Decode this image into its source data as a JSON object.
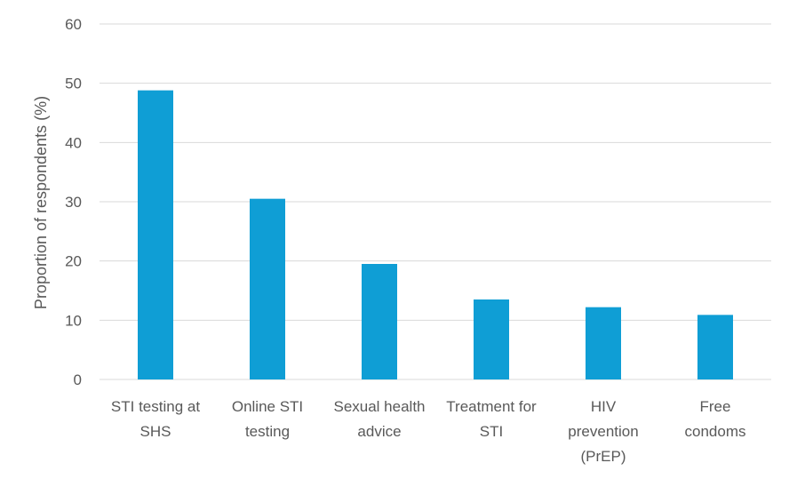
{
  "chart_data": {
    "type": "bar",
    "categories": [
      [
        "STI testing at",
        "SHS"
      ],
      [
        "Online STI",
        "testing"
      ],
      [
        "Sexual health",
        "advice"
      ],
      [
        "Treatment for",
        "STI"
      ],
      [
        "HIV",
        "prevention",
        "(PrEP)"
      ],
      [
        "Free",
        "condoms"
      ]
    ],
    "values": [
      48.8,
      30.5,
      19.5,
      13.5,
      12.2,
      10.9
    ],
    "ylabel": "Proportion of respondents (%)",
    "ylim": [
      0,
      60
    ],
    "yticks": [
      "0",
      "10",
      "20",
      "30",
      "40",
      "50",
      "60"
    ],
    "grid": true,
    "bar_color": "#0F9ED5"
  }
}
